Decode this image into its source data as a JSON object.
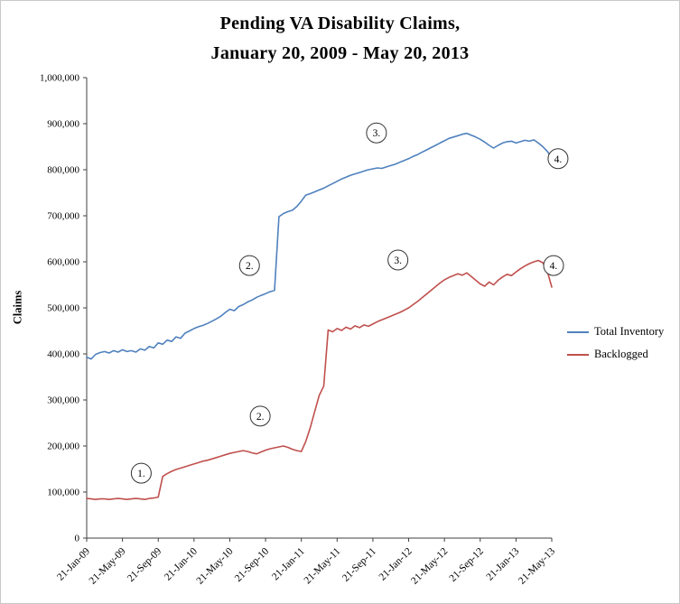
{
  "title": {
    "line1": "Pending VA Disability Claims,",
    "line2": "January 20, 2009 - May 20, 2013"
  },
  "chart_data": {
    "type": "line",
    "title": "Pending VA Disability Claims, January 20, 2009 - May 20, 2013",
    "xlabel": "",
    "ylabel": "Claims",
    "ylim": [
      0,
      1000000
    ],
    "ytick_step": 100000,
    "grid": false,
    "legend_position": "right",
    "x_months_span": 52,
    "points_per_month": 2,
    "x_tick_months": [
      0,
      4,
      8,
      12,
      16,
      20,
      24,
      28,
      32,
      36,
      40,
      44,
      48,
      52
    ],
    "x_tick_labels": [
      "21-Jan-09",
      "21-May-09",
      "21-Sep-09",
      "21-Jan-10",
      "21-May-10",
      "21-Sep-10",
      "21-Jan-11",
      "21-May-11",
      "21-Sep-11",
      "21-Jan-12",
      "21-May-12",
      "21-Sep-12",
      "21-Jan-13",
      "21-May-13"
    ],
    "series": [
      {
        "name": "Total Inventory",
        "color": "#4F81BD",
        "values": [
          393000,
          389000,
          399000,
          403000,
          405000,
          402000,
          407000,
          404000,
          409000,
          405000,
          407000,
          404000,
          411000,
          408000,
          416000,
          413000,
          424000,
          421000,
          430000,
          427000,
          437000,
          434000,
          445000,
          450000,
          455000,
          459000,
          462000,
          466000,
          471000,
          476000,
          482000,
          490000,
          497000,
          494000,
          503000,
          507000,
          513000,
          517000,
          523000,
          527000,
          531000,
          535000,
          538000,
          698000,
          705000,
          709000,
          712000,
          720000,
          732000,
          745000,
          748000,
          752000,
          756000,
          760000,
          765000,
          770000,
          775000,
          780000,
          784000,
          788000,
          791000,
          794000,
          797000,
          800000,
          802000,
          804000,
          803000,
          806000,
          809000,
          812000,
          816000,
          820000,
          824000,
          829000,
          833000,
          838000,
          843000,
          848000,
          853000,
          858000,
          863000,
          868000,
          871000,
          874000,
          877000,
          879000,
          875000,
          871000,
          866000,
          860000,
          853000,
          847000,
          853000,
          858000,
          861000,
          862000,
          858000,
          861000,
          864000,
          862000,
          865000,
          858000,
          850000,
          840000,
          826000
        ]
      },
      {
        "name": "Backlogged",
        "color": "#C0504D",
        "values": [
          86000,
          85000,
          84000,
          85000,
          85000,
          84000,
          85000,
          86000,
          85000,
          84000,
          85000,
          86000,
          85000,
          84000,
          86000,
          87000,
          89000,
          134000,
          140000,
          145000,
          149000,
          152000,
          155000,
          158000,
          161000,
          164000,
          167000,
          169000,
          172000,
          175000,
          178000,
          181000,
          184000,
          186000,
          188000,
          190000,
          188000,
          185000,
          183000,
          187000,
          191000,
          194000,
          196000,
          198000,
          200000,
          197000,
          193000,
          190000,
          188000,
          210000,
          240000,
          275000,
          310000,
          330000,
          452000,
          448000,
          455000,
          451000,
          458000,
          454000,
          461000,
          457000,
          463000,
          460000,
          465000,
          470000,
          474000,
          478000,
          482000,
          486000,
          490000,
          495000,
          500000,
          507000,
          514000,
          522000,
          530000,
          538000,
          546000,
          554000,
          561000,
          566000,
          570000,
          574000,
          571000,
          576000,
          568000,
          560000,
          552000,
          547000,
          556000,
          550000,
          560000,
          567000,
          573000,
          570000,
          578000,
          585000,
          591000,
          596000,
          600000,
          603000,
          598000,
          580000,
          545000
        ]
      }
    ],
    "annotations": [
      {
        "label": "1.",
        "x_month": 6.1,
        "y": 141000
      },
      {
        "label": "2.",
        "x_month": 18.2,
        "y": 592000
      },
      {
        "label": "2.",
        "x_month": 19.4,
        "y": 265000
      },
      {
        "label": "3.",
        "x_month": 32.4,
        "y": 880000
      },
      {
        "label": "3.",
        "x_month": 34.8,
        "y": 604000
      },
      {
        "label": "4.",
        "x_month": 52.7,
        "y": 824000
      },
      {
        "label": "4.",
        "x_month": 52.2,
        "y": 592000
      }
    ]
  }
}
